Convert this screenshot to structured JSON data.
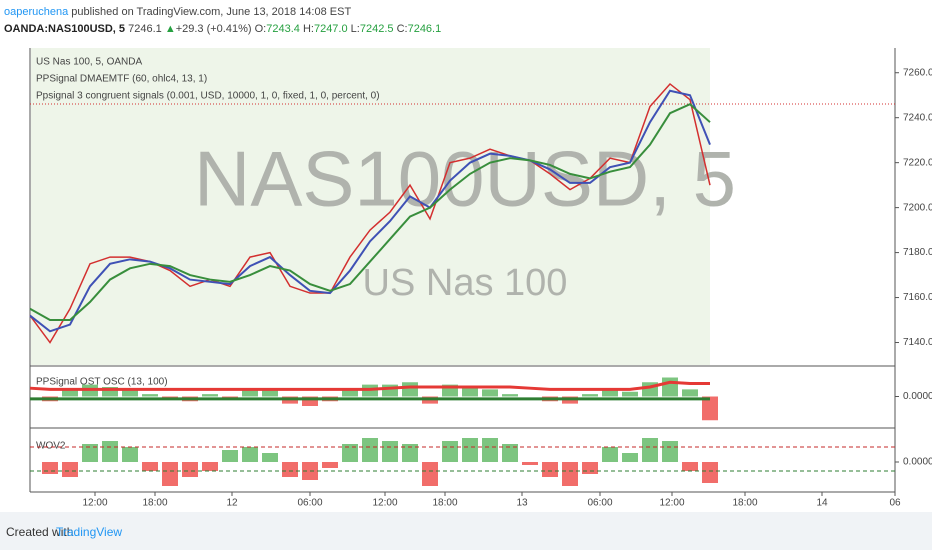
{
  "header": {
    "author": "oaperuchena",
    "published": "published on TradingView.com, June 13, 2018 14:08 EST",
    "quote": [
      "OANDA:NAS100USD, 5",
      "7246.1",
      "▲",
      "+29.3 (+0.41%)",
      "O:",
      "7243.4",
      "H:",
      "7247.0",
      "L:",
      "7242.5",
      "C:",
      "7246.1"
    ]
  },
  "footer": {
    "created": "Created with",
    "brand": "TradingView"
  },
  "chart_data": [
    {
      "type": "line",
      "legend": [
        "US Nas 100, 5, OANDA",
        "PPSignal DMAEMTF (60, ohlc4, 13, 1)",
        "Ppsignal 3 congruent signals (0.001, USD, 10000, 1, 0, fixed, 1, 0, percent, 0)"
      ],
      "watermark": "NAS100USD, 5",
      "watermark_sub": "US Nas 100",
      "x": [
        0,
        1,
        2,
        3,
        4,
        5,
        6,
        7,
        8,
        9,
        10,
        11,
        12,
        13,
        14,
        15,
        16,
        17,
        18,
        19,
        20,
        21,
        22,
        23,
        24,
        25,
        26,
        27,
        28,
        29,
        30,
        31,
        32,
        33,
        34
      ],
      "series": [
        {
          "color": "#d32f2f",
          "values": [
            7152,
            7140,
            7155,
            7175,
            7178,
            7178,
            7176,
            7172,
            7165,
            7168,
            7165,
            7178,
            7180,
            7165,
            7162,
            7162,
            7178,
            7190,
            7198,
            7210,
            7195,
            7220,
            7222,
            7226,
            7223,
            7221,
            7215,
            7208,
            7213,
            7222,
            7220,
            7245,
            7255,
            7248,
            7210
          ]
        },
        {
          "color": "#3f51b5",
          "values": [
            7152,
            7145,
            7148,
            7165,
            7175,
            7177,
            7176,
            7173,
            7168,
            7167,
            7166,
            7174,
            7178,
            7170,
            7163,
            7162,
            7172,
            7185,
            7194,
            7205,
            7200,
            7212,
            7220,
            7224,
            7223,
            7221,
            7217,
            7211,
            7211,
            7218,
            7220,
            7238,
            7252,
            7250,
            7228
          ]
        },
        {
          "color": "#388e3c",
          "values": [
            7155,
            7150,
            7150,
            7158,
            7168,
            7173,
            7175,
            7174,
            7170,
            7168,
            7167,
            7170,
            7174,
            7172,
            7166,
            7163,
            7166,
            7176,
            7186,
            7196,
            7200,
            7208,
            7215,
            7220,
            7222,
            7221,
            7219,
            7215,
            7213,
            7216,
            7218,
            7228,
            7242,
            7246,
            7238
          ]
        }
      ],
      "hline": 7246.1,
      "hline_color": "#d32f2f",
      "xlim": [
        0,
        43.25
      ],
      "xticks": [
        {
          "value": 3.25,
          "label": "12:00"
        },
        {
          "value": 6.25,
          "label": "18:00"
        },
        {
          "value": 10.1,
          "label": "12"
        },
        {
          "value": 14,
          "label": "06:00"
        },
        {
          "value": 17.75,
          "label": "12:00"
        },
        {
          "value": 20.75,
          "label": "18:00"
        },
        {
          "value": 24.6,
          "label": "13"
        },
        {
          "value": 28.5,
          "label": "06:00"
        },
        {
          "value": 32.1,
          "label": "12:00"
        },
        {
          "value": 35.75,
          "label": "18:00"
        },
        {
          "value": 39.6,
          "label": "14"
        },
        {
          "value": 43.25,
          "label": "06"
        }
      ],
      "ylim": [
        7130,
        7271
      ],
      "yticks": [
        {
          "value": 7140,
          "label": "7140.0"
        },
        {
          "value": 7160,
          "label": "7160.0"
        },
        {
          "value": 7180,
          "label": "7180.0"
        },
        {
          "value": 7200,
          "label": "7200.0"
        },
        {
          "value": 7220,
          "label": "7220.0"
        },
        {
          "value": 7240,
          "label": "7240.0"
        },
        {
          "value": 7260,
          "label": "7260.0"
        }
      ]
    },
    {
      "type": "bar",
      "title": "PPSignal OST OSC (13, 100)",
      "x": [
        0,
        1,
        2,
        3,
        4,
        5,
        6,
        7,
        8,
        9,
        10,
        11,
        12,
        13,
        14,
        15,
        16,
        17,
        18,
        19,
        20,
        21,
        22,
        23,
        24,
        25,
        26,
        27,
        28,
        29,
        30,
        31,
        32,
        33,
        34
      ],
      "values": [
        0,
        -0.2,
        0.3,
        0.5,
        0.4,
        0.3,
        0.1,
        -0.1,
        -0.2,
        0.1,
        -0.1,
        0.3,
        0.3,
        -0.3,
        -0.4,
        -0.2,
        0.3,
        0.5,
        0.5,
        0.6,
        -0.3,
        0.5,
        0.4,
        0.3,
        0.1,
        0,
        -0.2,
        -0.3,
        0.1,
        0.3,
        0.2,
        0.6,
        0.8,
        0.3,
        -1.0
      ],
      "series": [
        {
          "color": "#e53935",
          "values": [
            0.35,
            0.3,
            0.3,
            0.3,
            0.3,
            0.3,
            0.3,
            0.3,
            0.3,
            0.3,
            0.3,
            0.3,
            0.3,
            0.3,
            0.3,
            0.3,
            0.3,
            0.3,
            0.35,
            0.4,
            0.4,
            0.4,
            0.4,
            0.4,
            0.4,
            0.35,
            0.3,
            0.3,
            0.3,
            0.3,
            0.3,
            0.4,
            0.6,
            0.55,
            0.55
          ]
        },
        {
          "color": "#2e7d32",
          "values": [
            -0.1,
            -0.1,
            -0.1,
            -0.1,
            -0.1,
            -0.1,
            -0.1,
            -0.1,
            -0.1,
            -0.1,
            -0.1,
            -0.1,
            -0.1,
            -0.1,
            -0.1,
            -0.1,
            -0.1,
            -0.1,
            -0.1,
            -0.1,
            -0.1,
            -0.1,
            -0.1,
            -0.1,
            -0.1,
            -0.1,
            -0.1,
            -0.1,
            -0.1,
            -0.1,
            -0.1,
            -0.1,
            -0.1,
            -0.1,
            -0.1
          ]
        }
      ],
      "xlim": [
        0,
        43.25
      ],
      "ylim": [
        -1.2,
        1.2
      ],
      "yticks": [
        {
          "value": 0,
          "label": "0.0000"
        }
      ]
    },
    {
      "type": "bar",
      "title": "WOV2",
      "x": [
        0,
        1,
        2,
        3,
        4,
        5,
        6,
        7,
        8,
        9,
        10,
        11,
        12,
        13,
        14,
        15,
        16,
        17,
        18,
        19,
        20,
        21,
        22,
        23,
        24,
        25,
        26,
        27,
        28,
        29,
        30,
        31,
        32,
        33,
        34
      ],
      "values": [
        0,
        -0.4,
        -0.5,
        0.6,
        0.7,
        0.5,
        -0.3,
        -0.8,
        -0.5,
        -0.3,
        0.4,
        0.5,
        0.3,
        -0.5,
        -0.6,
        -0.2,
        0.6,
        0.8,
        0.7,
        0.6,
        -0.8,
        0.7,
        0.8,
        0.8,
        0.6,
        -0.1,
        -0.5,
        -0.8,
        -0.4,
        0.5,
        0.3,
        0.8,
        0.7,
        -0.3,
        -0.7
      ],
      "hlines": [
        {
          "value": 0.5,
          "color": "#c62828"
        },
        {
          "value": -0.3,
          "color": "#2e7d32"
        }
      ],
      "xlim": [
        0,
        43.25
      ],
      "ylim": [
        -1,
        1
      ],
      "yticks": [
        {
          "value": 0,
          "label": "0.0000"
        }
      ]
    }
  ]
}
